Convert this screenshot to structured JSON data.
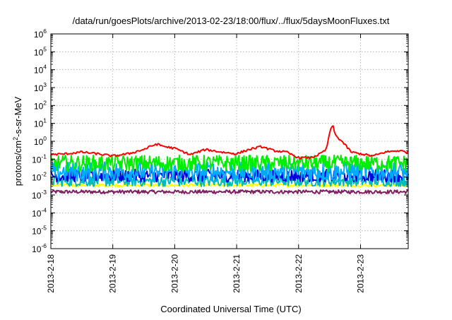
{
  "chart_data": {
    "type": "line",
    "title": "/data/run/goesPlots/archive/2013-02-23/18:00/flux/../flux/5daysMoonFluxes.txt",
    "xlabel": "Coordinated Universal Time (UTC)",
    "ylabel": {
      "base": "protons/cm",
      "sup": "2",
      "rest": "-s-sr-MeV"
    },
    "yscale": "log",
    "ylim": [
      1e-06,
      1000000
    ],
    "xlim": [
      0,
      5.77
    ],
    "grid": true,
    "x_tick_labels": [
      "2013-2-18",
      "2013-2-19",
      "2013-2-20",
      "2013-2-21",
      "2013-2-22",
      "2013-2-23"
    ],
    "x_tick_values": [
      0,
      1,
      2,
      3,
      4,
      5
    ],
    "y_tick_exponents": [
      -6,
      -5,
      -4,
      -3,
      -2,
      -1,
      0,
      1,
      2,
      3,
      4,
      5,
      6
    ],
    "y_tick_base": "10",
    "x_units": "days since 2013-2-18 00:00 UTC",
    "series": [
      {
        "color": "#ff0000",
        "x": [
          0,
          0.25,
          0.5,
          0.75,
          1.0,
          1.25,
          1.5,
          1.7,
          1.85,
          2.0,
          2.25,
          2.5,
          2.75,
          3.0,
          3.2,
          3.4,
          3.6,
          3.8,
          4.0,
          4.2,
          4.35,
          4.45,
          4.5,
          4.55,
          4.6,
          4.7,
          4.85,
          5.0,
          5.2,
          5.4,
          5.6,
          5.77
        ],
        "y": [
          0.18,
          0.2,
          0.25,
          0.2,
          0.15,
          0.2,
          0.35,
          0.7,
          0.5,
          0.4,
          0.18,
          0.35,
          0.25,
          0.2,
          0.35,
          0.5,
          0.3,
          0.25,
          0.12,
          0.12,
          0.2,
          0.35,
          3,
          8,
          2,
          1,
          0.25,
          0.2,
          0.15,
          0.25,
          0.3,
          0.25
        ]
      },
      {
        "color": "#00ee00",
        "x": [
          0,
          5.77
        ],
        "y": [
          0.06,
          0.06
        ],
        "noise_decades": 0.45
      },
      {
        "color": "#00aaff",
        "x": [
          0,
          5.77
        ],
        "y": [
          0.02,
          0.02
        ],
        "noise_decades": 0.55
      },
      {
        "color": "#0000dd",
        "x": [
          0,
          5.77
        ],
        "y": [
          0.012,
          0.012
        ],
        "noise_decades": 0.35
      },
      {
        "color": "#00bbbb",
        "x": [
          0,
          5.77
        ],
        "y": [
          0.006,
          0.006
        ],
        "noise_decades": 0.3
      },
      {
        "color": "#ffff00",
        "x": [
          0,
          5.77
        ],
        "y": [
          0.0035,
          0.0035
        ],
        "noise_decades": 0.08
      },
      {
        "color": "#7f2060",
        "x": [
          0,
          5.77
        ],
        "y": [
          0.0015,
          0.0015
        ],
        "noise_decades": 0.1
      }
    ]
  }
}
